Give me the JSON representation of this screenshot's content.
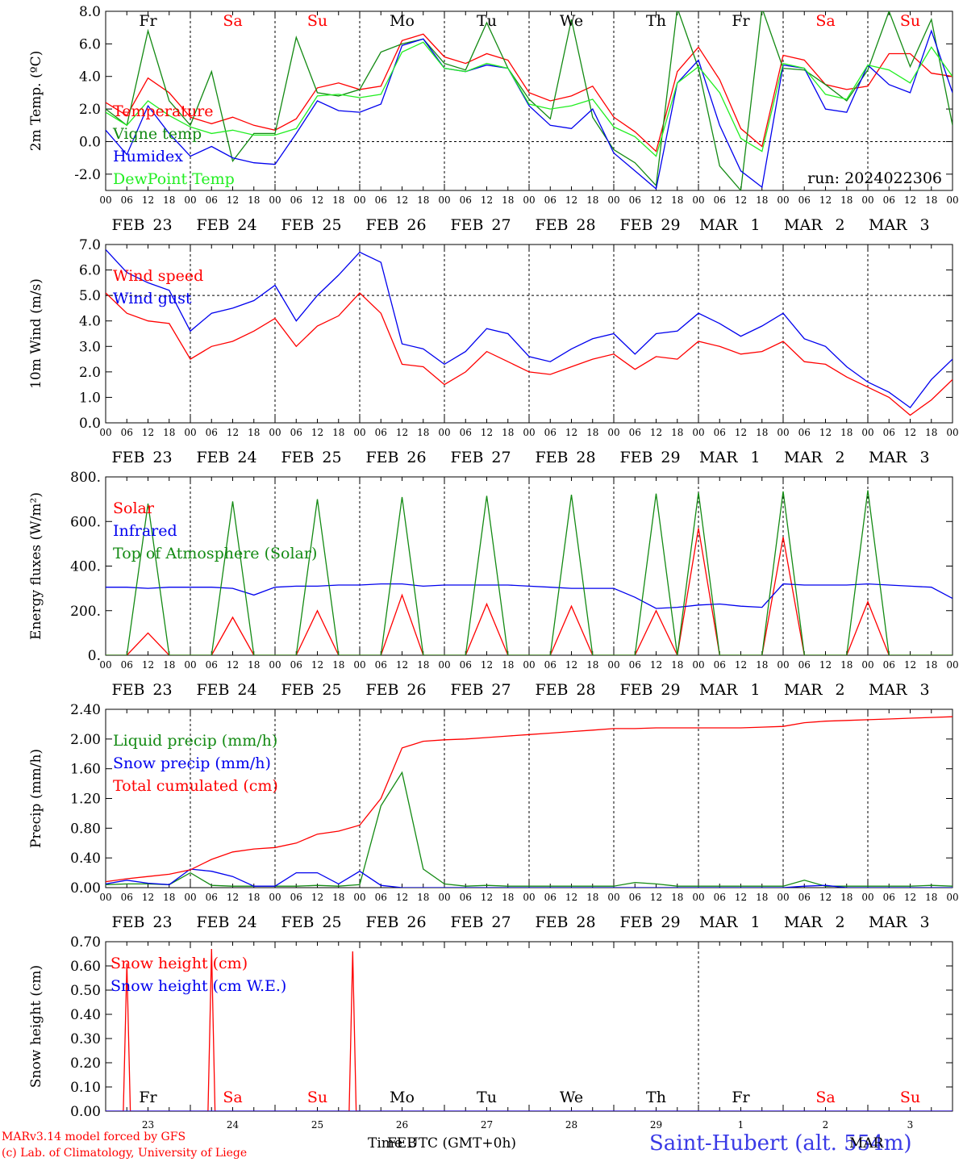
{
  "run_label": "run: 2024022306",
  "footer": {
    "credit1": "MARv3.14 model forced by GFS",
    "credit2": "(c) Lab. of Climatology, University of Liege",
    "time_label": "Time UTC (GMT+0h)",
    "feb_label": "FEB",
    "mar_label": "MAR",
    "station": "Saint-Hubert (alt. 554m)"
  },
  "colors": {
    "red": "#ff0000",
    "green": "#138a13",
    "blue": "#0000ee",
    "lightgreen": "#22ee22"
  },
  "time_axis": {
    "hour_ticks": [
      "00",
      "06",
      "12",
      "18"
    ],
    "final_tick": "00",
    "dates": [
      {
        "month": "FEB",
        "day": "23"
      },
      {
        "month": "FEB",
        "day": "24"
      },
      {
        "month": "FEB",
        "day": "25"
      },
      {
        "month": "FEB",
        "day": "26"
      },
      {
        "month": "FEB",
        "day": "27"
      },
      {
        "month": "FEB",
        "day": "28"
      },
      {
        "month": "FEB",
        "day": "29"
      },
      {
        "month": "MAR",
        "day": "1"
      },
      {
        "month": "MAR",
        "day": "2"
      },
      {
        "month": "MAR",
        "day": "3"
      }
    ],
    "weekdays": [
      "Fr",
      "Sa",
      "Su",
      "Mo",
      "Tu",
      "We",
      "Th",
      "Fr",
      "Sa",
      "Su"
    ],
    "weekend_flags": [
      false,
      true,
      true,
      false,
      false,
      false,
      false,
      false,
      true,
      true
    ],
    "bottom_day_numbers": [
      "23",
      "24",
      "25",
      "26",
      "27",
      "28",
      "29",
      "1",
      "2",
      "3"
    ]
  },
  "chart_data": [
    {
      "type": "line",
      "ylabel": "2m Temp. (ºC)",
      "ylim": [
        -3.0,
        8.0
      ],
      "yticks": [
        "8.0",
        "6.0",
        "4.0",
        "2.0",
        "0.0",
        "-2.0"
      ],
      "ytick_values": [
        8,
        6,
        4,
        2,
        0,
        -2
      ],
      "dashed_y": 0,
      "x": [
        0,
        6,
        12,
        18,
        24,
        30,
        36,
        42,
        48,
        54,
        60,
        66,
        72,
        78,
        84,
        90,
        96,
        102,
        108,
        114,
        120,
        126,
        132,
        138,
        144,
        150,
        156,
        162,
        168,
        174,
        180,
        186,
        192,
        198,
        204,
        210,
        216,
        222,
        228,
        234,
        240
      ],
      "series": [
        {
          "name": "Temperature",
          "color": "#ff0000",
          "values": [
            2.4,
            1.6,
            3.9,
            3.0,
            1.5,
            1.1,
            1.5,
            1.0,
            0.7,
            1.4,
            3.3,
            3.6,
            3.2,
            3.4,
            6.2,
            6.6,
            5.2,
            4.8,
            5.4,
            5.0,
            3.0,
            2.5,
            2.8,
            3.4,
            1.5,
            0.6,
            -0.6,
            4.3,
            5.8,
            3.8,
            0.8,
            -0.3,
            5.3,
            5.0,
            3.5,
            3.2,
            3.4,
            5.4,
            5.4,
            4.2,
            4.0
          ]
        },
        {
          "name": "Vigne temp",
          "color": "#138a13",
          "values": [
            2.0,
            1.0,
            6.8,
            2.5,
            1.0,
            4.3,
            -1.2,
            0.5,
            0.5,
            6.4,
            3.0,
            2.8,
            3.2,
            5.5,
            6.0,
            6.3,
            4.8,
            4.4,
            7.3,
            4.5,
            2.6,
            1.4,
            7.5,
            1.5,
            -0.5,
            -1.3,
            -2.7,
            8.2,
            4.5,
            -1.5,
            -3.0,
            8.2,
            4.5,
            4.4,
            3.5,
            2.5,
            4.4,
            8.0,
            4.6,
            7.5,
            1.0
          ]
        },
        {
          "name": "Humidex",
          "color": "#0000ee",
          "values": [
            0.7,
            -0.8,
            2.2,
            0.5,
            -0.9,
            -0.3,
            -1.0,
            -1.3,
            -1.4,
            0.5,
            2.5,
            1.9,
            1.8,
            2.3,
            5.9,
            6.3,
            4.5,
            4.3,
            4.7,
            4.5,
            2.2,
            1.0,
            0.8,
            2.0,
            -0.7,
            -1.8,
            -2.9,
            3.6,
            5.0,
            1.0,
            -1.8,
            -2.8,
            4.7,
            4.5,
            2.0,
            1.8,
            4.7,
            3.5,
            3.0,
            6.8,
            3.0
          ]
        },
        {
          "name": "DewPoint Temp",
          "color": "#22ee22",
          "values": [
            1.8,
            1.0,
            2.5,
            1.6,
            0.9,
            0.5,
            0.7,
            0.4,
            0.4,
            0.8,
            2.8,
            2.9,
            2.7,
            2.9,
            5.5,
            6.1,
            4.5,
            4.3,
            4.8,
            4.5,
            2.3,
            2.0,
            2.2,
            2.6,
            0.9,
            0.3,
            -0.9,
            3.6,
            4.6,
            3.0,
            0.2,
            -0.6,
            4.8,
            4.5,
            2.9,
            2.6,
            4.7,
            4.4,
            3.6,
            5.8,
            4.0
          ]
        }
      ]
    },
    {
      "type": "line",
      "ylabel": "10m Wind (m/s)",
      "ylim": [
        0.0,
        7.0
      ],
      "yticks": [
        "7.0",
        "6.0",
        "5.0",
        "4.0",
        "3.0",
        "2.0",
        "1.0",
        "0.0"
      ],
      "ytick_values": [
        7,
        6,
        5,
        4,
        3,
        2,
        1,
        0
      ],
      "dashed_y": 5,
      "x": [
        0,
        6,
        12,
        18,
        24,
        30,
        36,
        42,
        48,
        54,
        60,
        66,
        72,
        78,
        84,
        90,
        96,
        102,
        108,
        114,
        120,
        126,
        132,
        138,
        144,
        150,
        156,
        162,
        168,
        174,
        180,
        186,
        192,
        198,
        204,
        210,
        216,
        222,
        228,
        234,
        240
      ],
      "series": [
        {
          "name": "Wind speed",
          "color": "#ff0000",
          "values": [
            5.1,
            4.3,
            4.0,
            3.9,
            2.5,
            3.0,
            3.2,
            3.6,
            4.1,
            3.0,
            3.8,
            4.2,
            5.1,
            4.3,
            2.3,
            2.2,
            1.5,
            2.0,
            2.8,
            2.4,
            2.0,
            1.9,
            2.2,
            2.5,
            2.7,
            2.1,
            2.6,
            2.5,
            3.2,
            3.0,
            2.7,
            2.8,
            3.2,
            2.4,
            2.3,
            1.8,
            1.4,
            1.0,
            0.3,
            0.9,
            1.7
          ]
        },
        {
          "name": "Wind gust",
          "color": "#0000ee",
          "values": [
            6.8,
            5.9,
            5.5,
            5.2,
            3.6,
            4.3,
            4.5,
            4.8,
            5.4,
            4.0,
            5.0,
            5.8,
            6.7,
            6.3,
            3.1,
            2.9,
            2.3,
            2.8,
            3.7,
            3.5,
            2.6,
            2.4,
            2.9,
            3.3,
            3.5,
            2.7,
            3.5,
            3.6,
            4.3,
            3.9,
            3.4,
            3.8,
            4.3,
            3.3,
            3.0,
            2.2,
            1.6,
            1.2,
            0.6,
            1.7,
            2.5
          ]
        }
      ]
    },
    {
      "type": "line",
      "ylabel": "Energy fluxes (W/m²)",
      "ylim": [
        0,
        800
      ],
      "yticks": [
        "800.",
        "600.",
        "400.",
        "200.",
        "0."
      ],
      "ytick_values": [
        800,
        600,
        400,
        200,
        0
      ],
      "x": [
        0,
        6,
        12,
        18,
        24,
        30,
        36,
        42,
        48,
        54,
        60,
        66,
        72,
        78,
        84,
        90,
        96,
        102,
        108,
        114,
        120,
        126,
        132,
        138,
        144,
        150,
        156,
        162,
        168,
        174,
        180,
        186,
        192,
        198,
        204,
        210,
        216,
        222,
        228,
        234,
        240
      ],
      "series": [
        {
          "name": "Solar",
          "color": "#ff0000",
          "values": [
            0,
            0,
            100,
            0,
            0,
            0,
            170,
            0,
            0,
            0,
            200,
            0,
            0,
            0,
            270,
            0,
            0,
            0,
            230,
            0,
            0,
            0,
            220,
            0,
            0,
            0,
            200,
            0,
            570,
            0,
            0,
            0,
            530,
            0,
            0,
            0,
            240,
            0,
            0,
            0,
            0
          ]
        },
        {
          "name": "Infrared",
          "color": "#0000ee",
          "values": [
            305,
            305,
            300,
            305,
            305,
            305,
            300,
            270,
            305,
            310,
            310,
            315,
            315,
            320,
            320,
            310,
            315,
            315,
            315,
            315,
            310,
            305,
            300,
            300,
            300,
            260,
            210,
            215,
            225,
            230,
            220,
            215,
            320,
            315,
            315,
            315,
            320,
            315,
            310,
            305,
            255
          ]
        },
        {
          "name": "Top of Atmosphere (Solar)",
          "color": "#138a13",
          "values": [
            0,
            0,
            680,
            0,
            0,
            0,
            690,
            0,
            0,
            0,
            700,
            0,
            0,
            0,
            710,
            0,
            0,
            0,
            715,
            0,
            0,
            0,
            720,
            0,
            0,
            0,
            725,
            0,
            730,
            0,
            0,
            0,
            735,
            0,
            0,
            0,
            740,
            0,
            0,
            0,
            0
          ]
        }
      ]
    },
    {
      "type": "line",
      "ylabel": "Precip (mm/h)",
      "ylim": [
        0.0,
        2.4
      ],
      "yticks": [
        "2.40",
        "2.00",
        "1.60",
        "1.20",
        "0.80",
        "0.40",
        "0.00"
      ],
      "ytick_values": [
        2.4,
        2.0,
        1.6,
        1.2,
        0.8,
        0.4,
        0.0
      ],
      "x": [
        0,
        6,
        12,
        18,
        24,
        30,
        36,
        42,
        48,
        54,
        60,
        66,
        72,
        78,
        84,
        90,
        96,
        102,
        108,
        114,
        120,
        126,
        132,
        138,
        144,
        150,
        156,
        162,
        168,
        174,
        180,
        186,
        192,
        198,
        204,
        210,
        216,
        222,
        228,
        234,
        240
      ],
      "series": [
        {
          "name": "Liquid precip (mm/h)",
          "color": "#138a13",
          "values": [
            0.04,
            0.05,
            0.05,
            0.04,
            0.2,
            0.03,
            0.02,
            0.02,
            0.02,
            0.02,
            0.03,
            0.02,
            0.04,
            1.1,
            1.55,
            0.25,
            0.05,
            0.02,
            0.03,
            0.02,
            0.02,
            0.02,
            0.02,
            0.02,
            0.02,
            0.07,
            0.05,
            0.02,
            0.02,
            0.02,
            0.02,
            0.02,
            0.02,
            0.1,
            0.02,
            0.02,
            0.02,
            0.02,
            0.02,
            0.03,
            0.02
          ]
        },
        {
          "name": "Snow precip (mm/h)",
          "color": "#0000ee",
          "values": [
            0.05,
            0.1,
            0.06,
            0.04,
            0.25,
            0.22,
            0.15,
            0.02,
            0.02,
            0.2,
            0.2,
            0.05,
            0.22,
            0.03,
            0.0,
            0.0,
            0.0,
            0.0,
            0.0,
            0.0,
            0.0,
            0.0,
            0.0,
            0.0,
            0.0,
            0.0,
            0.0,
            0.0,
            0.0,
            0.0,
            0.0,
            0.0,
            0.0,
            0.02,
            0.03,
            0.0,
            0.0,
            0.0,
            0.0,
            0.0,
            0.0
          ]
        },
        {
          "name": "Total cumulated (cm)",
          "color": "#ff0000",
          "values": [
            0.08,
            0.12,
            0.15,
            0.18,
            0.24,
            0.38,
            0.48,
            0.52,
            0.54,
            0.6,
            0.72,
            0.76,
            0.84,
            1.2,
            1.88,
            1.97,
            1.99,
            2.0,
            2.02,
            2.04,
            2.06,
            2.08,
            2.1,
            2.12,
            2.14,
            2.14,
            2.15,
            2.15,
            2.15,
            2.15,
            2.15,
            2.16,
            2.17,
            2.22,
            2.24,
            2.25,
            2.26,
            2.27,
            2.28,
            2.29,
            2.3
          ]
        }
      ]
    },
    {
      "type": "line",
      "ylabel": "Snow height (cm)",
      "ylim": [
        0.0,
        0.7
      ],
      "yticks": [
        "0.70",
        "0.60",
        "0.50",
        "0.40",
        "0.30",
        "0.20",
        "0.10",
        "0.00"
      ],
      "ytick_values": [
        0.7,
        0.6,
        0.5,
        0.4,
        0.3,
        0.2,
        0.1,
        0.0
      ],
      "x": [
        0,
        5.0,
        6.0,
        7.0,
        29.0,
        30.0,
        31.0,
        69.0,
        70.0,
        71.0,
        240
      ],
      "series": [
        {
          "name": "Snow height (cm)",
          "color": "#ff0000",
          "values": [
            0,
            0,
            0.61,
            0,
            0,
            0.67,
            0,
            0,
            0.66,
            0,
            0
          ]
        },
        {
          "name": "Snow height (cm W.E.)",
          "color": "#0000ee",
          "values": [
            0,
            0,
            0,
            0,
            0,
            0,
            0,
            0,
            0,
            0,
            0
          ]
        }
      ]
    }
  ]
}
